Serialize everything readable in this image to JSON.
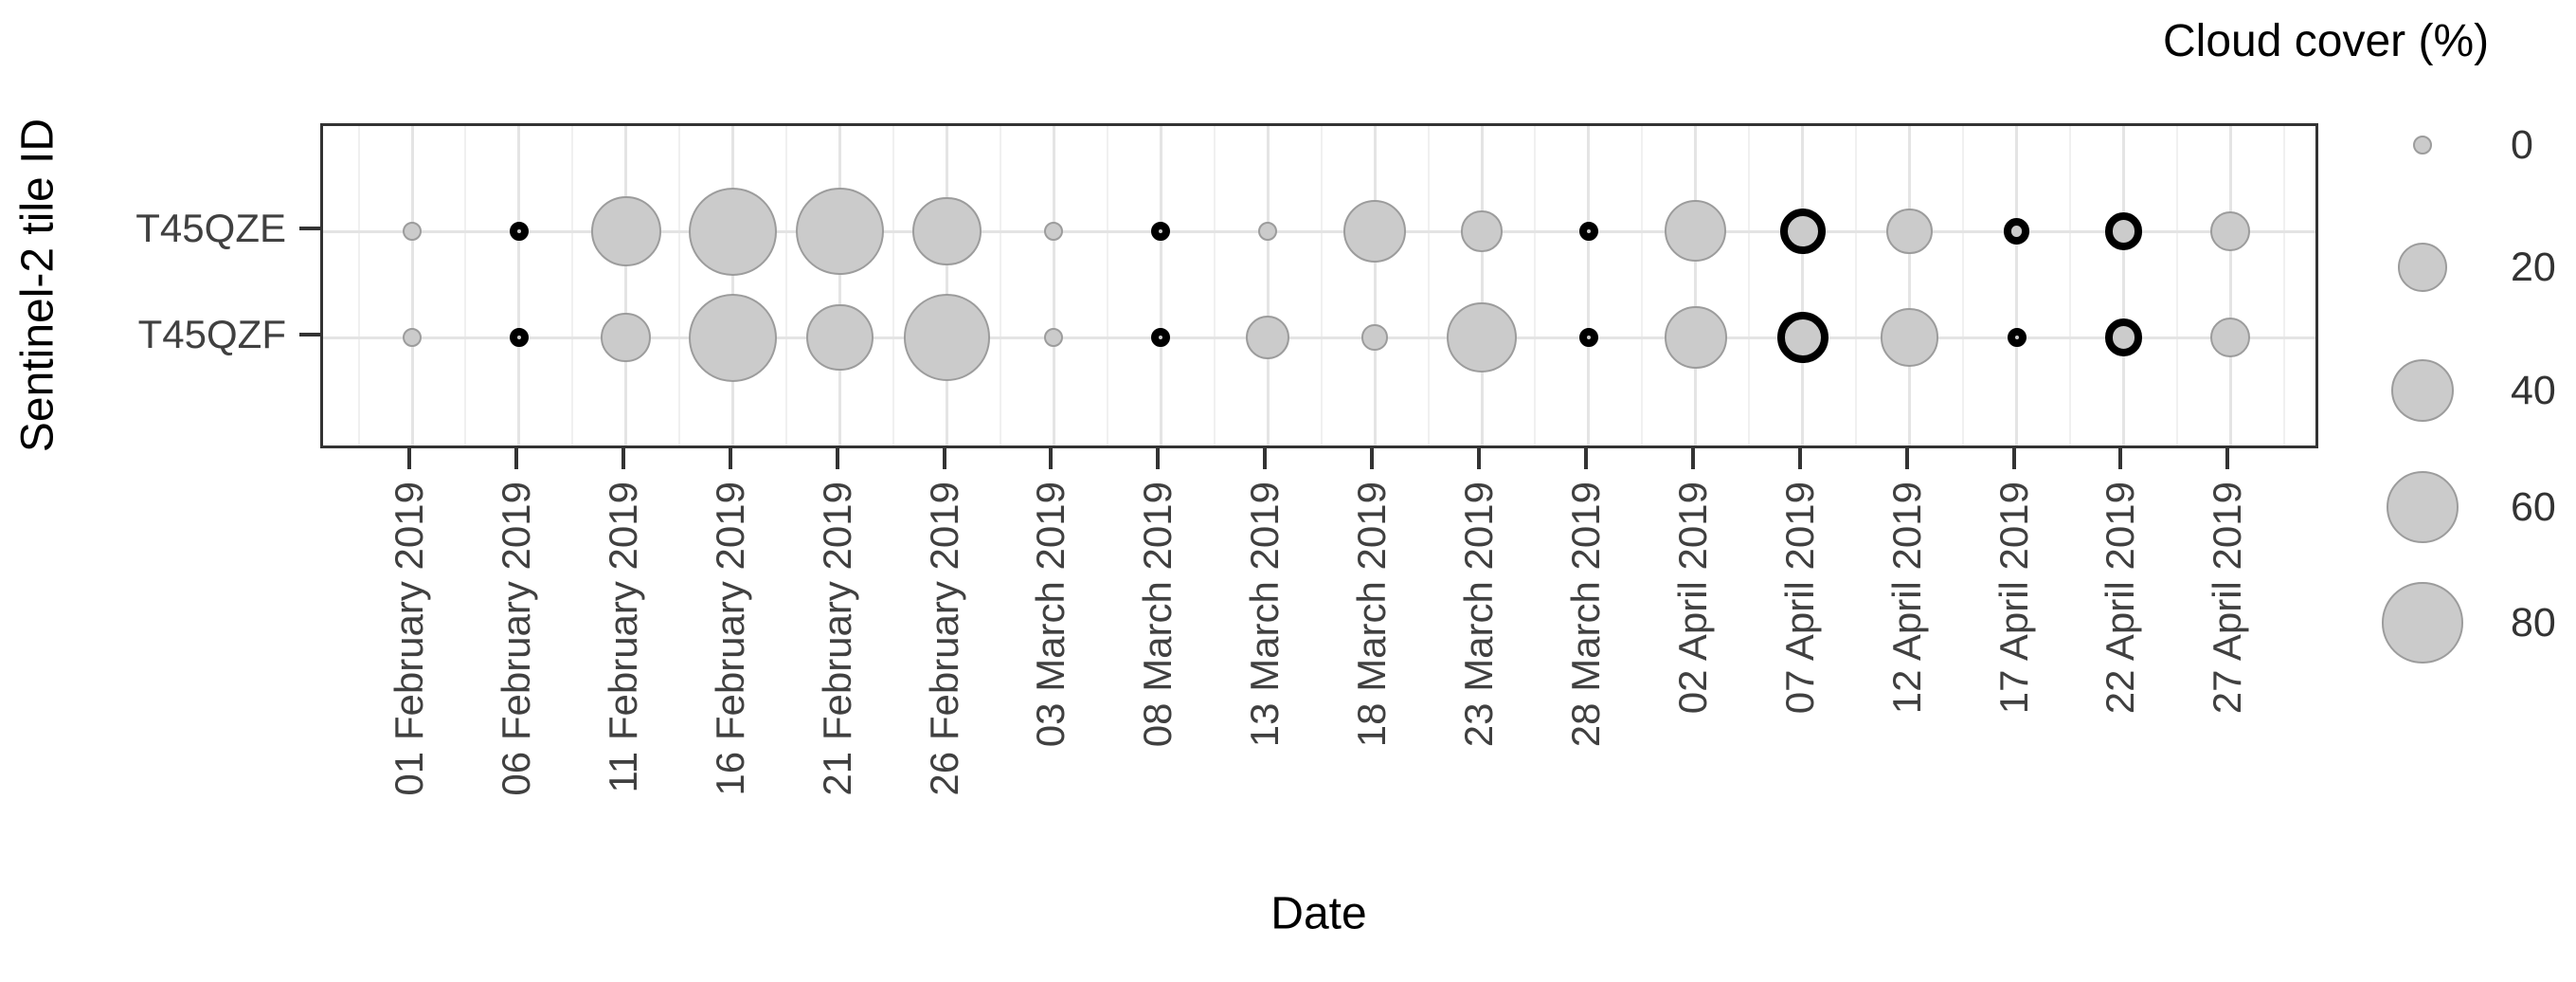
{
  "chart_data": {
    "type": "scatter",
    "subtype": "bubble",
    "title": "",
    "xlabel": "Date",
    "ylabel": "Sentinel-2 tile ID",
    "x": [
      "01 February 2019",
      "06 February 2019",
      "11 February 2019",
      "16 February 2019",
      "21 February 2019",
      "26 February 2019",
      "03 March 2019",
      "08 March 2019",
      "13 March 2019",
      "18 March 2019",
      "23 March 2019",
      "28 March 2019",
      "02 April 2019",
      "07 April 2019",
      "12 April 2019",
      "17 April 2019",
      "22 April 2019",
      "27 April 2019"
    ],
    "y_categories": [
      "T45QZE",
      "T45QZF"
    ],
    "series": [
      {
        "name": "T45QZE",
        "values": [
          0,
          0,
          55,
          100,
          98,
          52,
          0,
          0,
          0,
          40,
          10,
          0,
          38,
          15,
          15,
          1,
          7,
          9
        ],
        "highlighted": [
          false,
          true,
          false,
          false,
          false,
          false,
          false,
          true,
          false,
          false,
          false,
          true,
          false,
          true,
          false,
          true,
          true,
          false
        ]
      },
      {
        "name": "T45QZF",
        "values": [
          0,
          0,
          20,
          100,
          48,
          95,
          0,
          0,
          13,
          1,
          55,
          0,
          39,
          22,
          32,
          0,
          7,
          9
        ],
        "highlighted": [
          false,
          true,
          false,
          false,
          false,
          false,
          false,
          true,
          false,
          false,
          false,
          true,
          false,
          true,
          false,
          true,
          true,
          false
        ]
      }
    ],
    "legend": {
      "title": "Cloud cover (%)",
      "values": [
        0,
        20,
        40,
        60,
        80
      ],
      "labels": [
        "0",
        "20",
        "40",
        "60",
        "80"
      ],
      "position": "right-top"
    },
    "grid": {
      "vertical_major": true,
      "vertical_minor": true,
      "horizontal_major": true
    },
    "colors": {
      "bubble_fill": "#cbcbcb",
      "bubble_stroke": "#9c9c9c",
      "highlight_stroke": "#000000",
      "grid_major": "#e4e4e4",
      "grid_minor": "#f0f0f0",
      "panel_border": "#333333",
      "axis_text": "#404040",
      "title_text": "#000000"
    }
  }
}
